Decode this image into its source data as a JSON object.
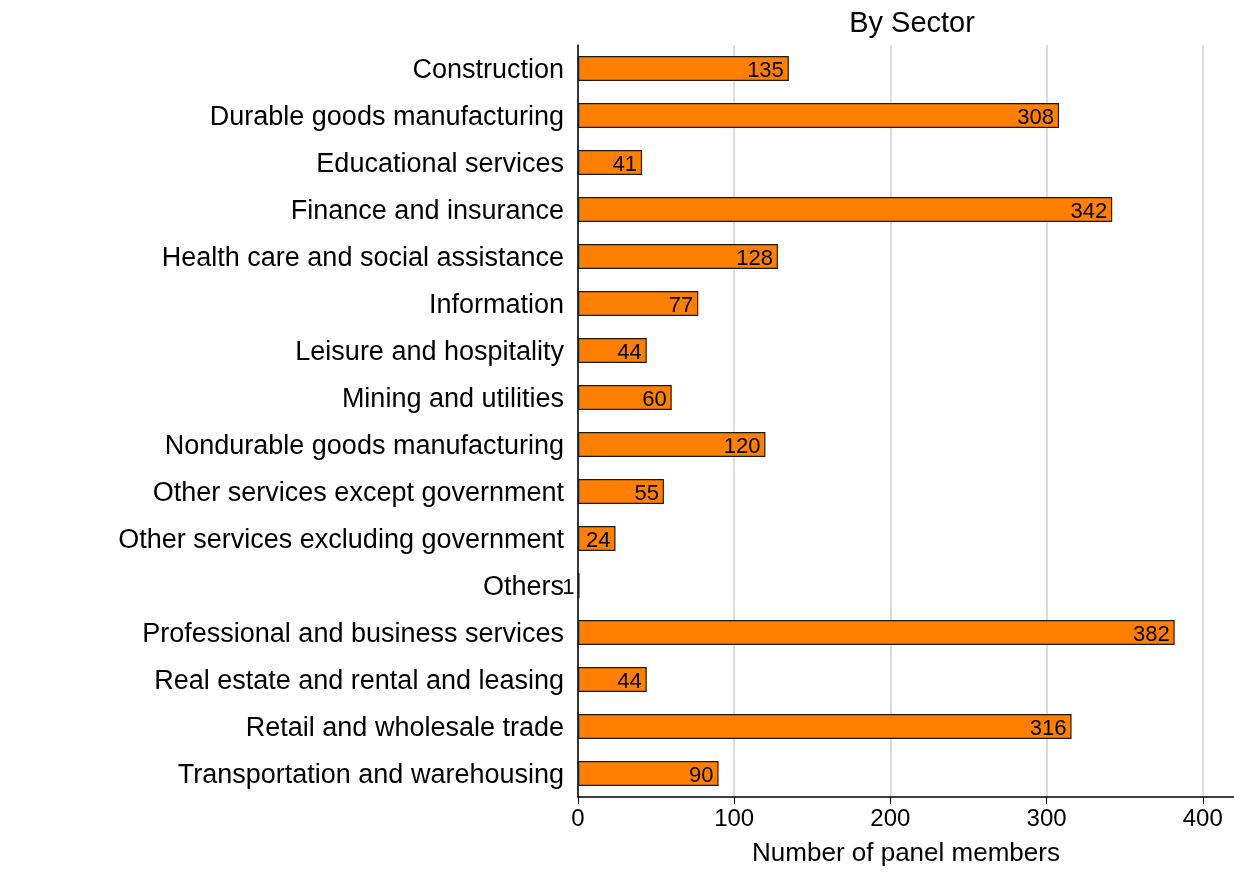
{
  "chart_data": {
    "type": "bar",
    "orientation": "horizontal",
    "title": "By Sector",
    "xlabel": "Number of panel members",
    "categories": [
      "Construction",
      "Durable goods manufacturing",
      "Educational services",
      "Finance and insurance",
      "Health care and social assistance",
      "Information",
      "Leisure and hospitality",
      "Mining and utilities",
      "Nondurable goods manufacturing",
      "Other services except government",
      "Other services excluding government",
      "Others",
      "Professional and business services",
      "Real estate and rental and leasing",
      "Retail and wholesale trade",
      "Transportation and warehousing"
    ],
    "values": [
      135,
      308,
      41,
      342,
      128,
      77,
      44,
      60,
      120,
      55,
      24,
      1,
      382,
      44,
      316,
      90
    ],
    "color": "#ff7f00",
    "xlim": [
      0,
      420
    ],
    "xticks": [
      0,
      100,
      200,
      300,
      400
    ],
    "grid": "x",
    "data_labels": true
  }
}
